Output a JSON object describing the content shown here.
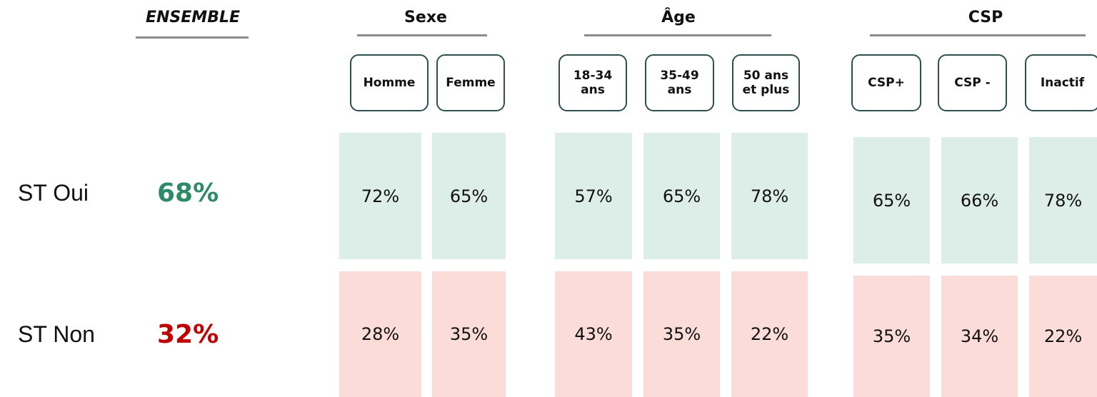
{
  "ensemble": {
    "title": "ENSEMBLE",
    "values": [
      "68%",
      "32%"
    ]
  },
  "rows": [
    "ST Oui",
    "ST Non"
  ],
  "groups": [
    {
      "title": "Sexe",
      "columns": [
        {
          "label": "Homme",
          "values": [
            "72%",
            "28%"
          ]
        },
        {
          "label": "Femme",
          "values": [
            "65%",
            "35%"
          ]
        }
      ]
    },
    {
      "title": "Âge",
      "columns": [
        {
          "label": "18-34\nans",
          "values": [
            "57%",
            "43%"
          ]
        },
        {
          "label": "35-49\nans",
          "values": [
            "65%",
            "35%"
          ]
        },
        {
          "label": "50 ans\net plus",
          "values": [
            "78%",
            "22%"
          ]
        }
      ]
    },
    {
      "title": "CSP",
      "columns": [
        {
          "label": "CSP+",
          "values": [
            "65%",
            "35%"
          ]
        },
        {
          "label": "CSP -",
          "values": [
            "66%",
            "34%"
          ]
        },
        {
          "label": "Inactif",
          "values": [
            "78%",
            "22%"
          ]
        }
      ]
    }
  ]
}
